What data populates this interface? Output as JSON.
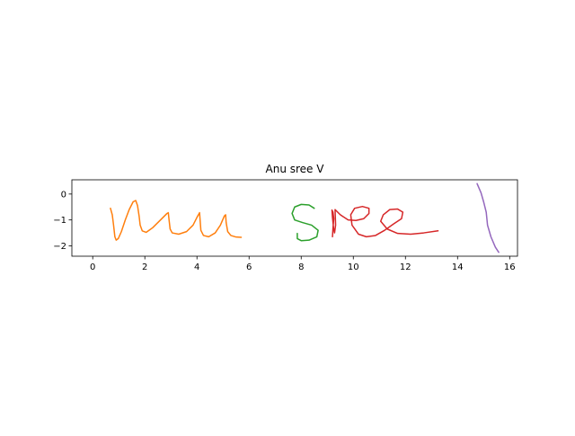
{
  "chart_data": {
    "type": "line",
    "title": "Anu sree V",
    "xlabel": "",
    "ylabel": "",
    "xlim": [
      -0.8,
      16.3
    ],
    "ylim": [
      -2.4,
      0.55
    ],
    "x_ticks": [
      0,
      2,
      4,
      6,
      8,
      10,
      12,
      14,
      16
    ],
    "x_tick_labels": [
      "0",
      "2",
      "4",
      "6",
      "8",
      "10",
      "12",
      "14",
      "16"
    ],
    "y_ticks": [
      0,
      -1,
      -2
    ],
    "y_tick_labels": [
      "0",
      "−1",
      "−2"
    ],
    "grid": false,
    "legend": false,
    "series": [
      {
        "color": "#ff7f0e",
        "points": [
          [
            0.68,
            -0.55
          ],
          [
            0.75,
            -0.8
          ],
          [
            0.8,
            -1.2
          ],
          [
            0.85,
            -1.65
          ],
          [
            0.9,
            -1.78
          ],
          [
            0.98,
            -1.72
          ],
          [
            1.1,
            -1.45
          ],
          [
            1.25,
            -1.0
          ],
          [
            1.4,
            -0.6
          ],
          [
            1.55,
            -0.3
          ],
          [
            1.65,
            -0.25
          ],
          [
            1.72,
            -0.45
          ],
          [
            1.78,
            -0.85
          ],
          [
            1.82,
            -1.2
          ],
          [
            1.9,
            -1.42
          ],
          [
            2.05,
            -1.48
          ],
          [
            2.3,
            -1.3
          ],
          [
            2.6,
            -1.0
          ],
          [
            2.85,
            -0.75
          ],
          [
            2.9,
            -0.72
          ],
          [
            2.93,
            -1.0
          ],
          [
            2.97,
            -1.35
          ],
          [
            3.05,
            -1.5
          ],
          [
            3.3,
            -1.55
          ],
          [
            3.6,
            -1.45
          ],
          [
            3.85,
            -1.2
          ],
          [
            4.0,
            -0.9
          ],
          [
            4.1,
            -0.72
          ],
          [
            4.12,
            -1.0
          ],
          [
            4.15,
            -1.4
          ],
          [
            4.25,
            -1.6
          ],
          [
            4.45,
            -1.65
          ],
          [
            4.7,
            -1.5
          ],
          [
            4.9,
            -1.2
          ],
          [
            5.05,
            -0.85
          ],
          [
            5.1,
            -0.8
          ],
          [
            5.12,
            -1.1
          ],
          [
            5.18,
            -1.45
          ],
          [
            5.3,
            -1.6
          ],
          [
            5.5,
            -1.66
          ],
          [
            5.7,
            -1.67
          ]
        ]
      },
      {
        "color": "#2ca02c",
        "points": [
          [
            8.5,
            -0.55
          ],
          [
            8.3,
            -0.42
          ],
          [
            8.0,
            -0.4
          ],
          [
            7.75,
            -0.5
          ],
          [
            7.65,
            -0.75
          ],
          [
            7.75,
            -1.0
          ],
          [
            8.05,
            -1.1
          ],
          [
            8.4,
            -1.2
          ],
          [
            8.65,
            -1.4
          ],
          [
            8.6,
            -1.65
          ],
          [
            8.3,
            -1.78
          ],
          [
            8.0,
            -1.8
          ],
          [
            7.85,
            -1.72
          ],
          [
            7.85,
            -1.52
          ]
        ]
      },
      {
        "color": "#d62728",
        "points": [
          [
            9.2,
            -1.65
          ],
          [
            9.22,
            -1.3
          ],
          [
            9.25,
            -0.95
          ],
          [
            9.22,
            -0.7
          ],
          [
            9.18,
            -0.62
          ],
          [
            9.2,
            -0.9
          ],
          [
            9.24,
            -1.3
          ],
          [
            9.28,
            -1.5
          ],
          [
            9.32,
            -1.2
          ],
          [
            9.3,
            -0.6
          ],
          [
            9.5,
            -0.8
          ],
          [
            9.8,
            -1.0
          ],
          [
            10.1,
            -1.02
          ],
          [
            10.4,
            -0.95
          ],
          [
            10.6,
            -0.75
          ],
          [
            10.6,
            -0.55
          ],
          [
            10.35,
            -0.48
          ],
          [
            10.05,
            -0.55
          ],
          [
            9.9,
            -0.8
          ],
          [
            9.95,
            -1.2
          ],
          [
            10.2,
            -1.55
          ],
          [
            10.5,
            -1.65
          ],
          [
            10.85,
            -1.6
          ],
          [
            11.2,
            -1.4
          ],
          [
            11.55,
            -1.15
          ],
          [
            11.85,
            -0.95
          ],
          [
            11.9,
            -0.7
          ],
          [
            11.7,
            -0.58
          ],
          [
            11.4,
            -0.6
          ],
          [
            11.15,
            -0.8
          ],
          [
            11.05,
            -1.05
          ],
          [
            11.3,
            -1.35
          ],
          [
            11.7,
            -1.52
          ],
          [
            12.2,
            -1.55
          ],
          [
            12.7,
            -1.5
          ],
          [
            13.25,
            -1.42
          ]
        ]
      },
      {
        "color": "#9467bd",
        "points": [
          [
            14.75,
            0.4
          ],
          [
            14.9,
            0.05
          ],
          [
            15.0,
            -0.3
          ],
          [
            15.1,
            -0.7
          ],
          [
            15.15,
            -1.2
          ],
          [
            15.28,
            -1.65
          ],
          [
            15.45,
            -2.05
          ],
          [
            15.58,
            -2.25
          ]
        ]
      }
    ]
  }
}
